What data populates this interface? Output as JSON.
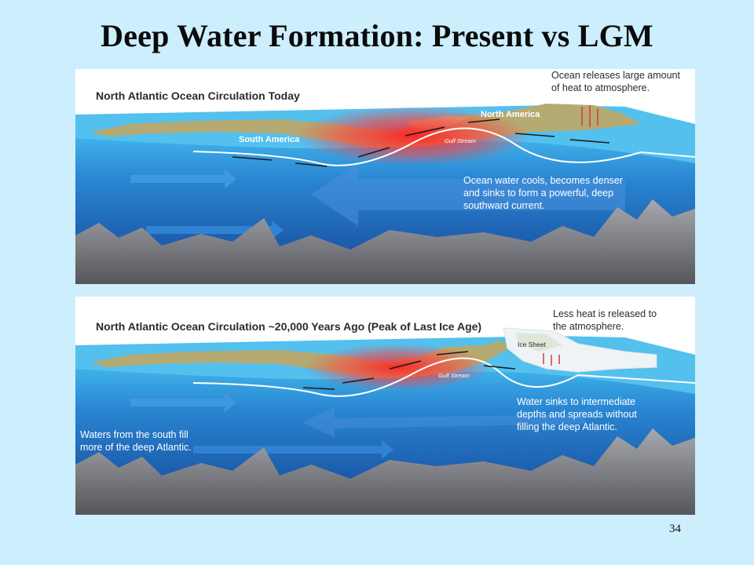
{
  "slide": {
    "title": "Deep Water Formation: Present vs LGM",
    "page_number": "34"
  },
  "panel_today": {
    "title": "North Atlantic Ocean Circulation Today",
    "south_america": "South America",
    "north_america": "North America",
    "gulf_stream": "Gulf Stream",
    "heat_note": [
      "Ocean releases large amount",
      "of heat to atmosphere."
    ],
    "sink_note": [
      "Ocean water cools, becomes denser",
      "and sinks to form a powerful, deep",
      "southward current."
    ]
  },
  "panel_lgm": {
    "title": "North Atlantic Ocean Circulation ~20,000 Years Ago (Peak of Last Ice Age)",
    "ice_sheet": "Ice Sheet",
    "gulf_stream": "Gulf Stream",
    "heat_note": [
      "Less heat is released to",
      "the atmosphere."
    ],
    "sink_note": [
      "Water sinks to intermediate",
      "depths and spreads without",
      "filling the deep Atlantic."
    ],
    "south_note": [
      "Waters from the south fill",
      "more of the deep  Atlantic."
    ]
  },
  "colors": {
    "background": "#cdeefd",
    "ocean_surface": "#47b6ea",
    "ocean_deep": "#1c5fb0",
    "land": "#b5aa72",
    "warm_current": "#ff2a2a",
    "seafloor": "#8f9096"
  }
}
